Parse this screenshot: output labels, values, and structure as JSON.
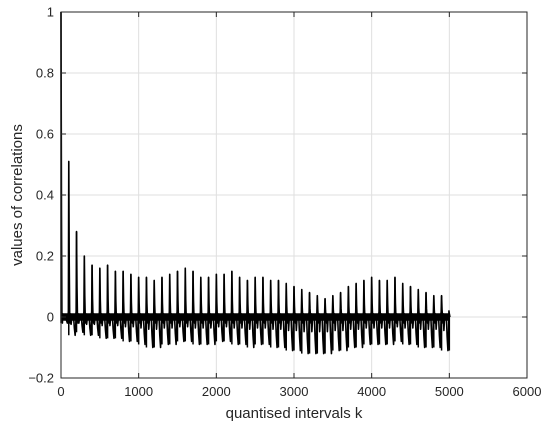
{
  "chart_data": {
    "type": "line",
    "title": "",
    "xlabel": "quantised intervals k",
    "ylabel": "values of correlations",
    "xlim": [
      0,
      6000
    ],
    "ylim": [
      -0.2,
      1
    ],
    "xticks": [
      0,
      1000,
      2000,
      3000,
      4000,
      5000,
      6000
    ],
    "xtick_labels": [
      "0",
      "1000",
      "2000",
      "3000",
      "4000",
      "5000",
      "6000"
    ],
    "yticks": [
      -0.2,
      0,
      0.2,
      0.4,
      0.6,
      0.8,
      1
    ],
    "ytick_labels": [
      "−0.2",
      "0",
      "0.2",
      "0.4",
      "0.6",
      "0.8",
      "1"
    ],
    "grid": true,
    "legend": "none",
    "line_color": "#000000",
    "series": [
      {
        "peak_k": [
          0,
          100,
          200,
          300,
          400,
          500,
          600,
          700,
          800,
          900,
          1000,
          1100,
          1200,
          1300,
          1400,
          1500,
          1600,
          1700,
          1800,
          1900,
          2000,
          2100,
          2200,
          2300,
          2400,
          2500,
          2600,
          2700,
          2800,
          2900,
          3000,
          3100,
          3200,
          3300,
          3400,
          3500,
          3600,
          3700,
          3800,
          3900,
          4000,
          4100,
          4200,
          4300,
          4400,
          4500,
          4600,
          4700,
          4800,
          4900,
          5000
        ],
        "peak_values": [
          1.0,
          0.51,
          0.28,
          0.2,
          0.17,
          0.16,
          0.17,
          0.15,
          0.15,
          0.14,
          0.13,
          0.13,
          0.12,
          0.13,
          0.14,
          0.15,
          0.16,
          0.15,
          0.13,
          0.13,
          0.14,
          0.14,
          0.15,
          0.13,
          0.12,
          0.13,
          0.13,
          0.12,
          0.12,
          0.11,
          0.1,
          0.09,
          0.08,
          0.07,
          0.06,
          0.07,
          0.08,
          0.1,
          0.11,
          0.12,
          0.13,
          0.12,
          0.12,
          0.13,
          0.11,
          0.1,
          0.09,
          0.08,
          0.07,
          0.07,
          0.01
        ],
        "trough_values": [
          -0.02,
          -0.06,
          -0.05,
          -0.06,
          -0.06,
          -0.07,
          -0.07,
          -0.07,
          -0.08,
          -0.08,
          -0.09,
          -0.1,
          -0.1,
          -0.09,
          -0.09,
          -0.08,
          -0.08,
          -0.09,
          -0.09,
          -0.09,
          -0.08,
          -0.08,
          -0.09,
          -0.09,
          -0.1,
          -0.09,
          -0.09,
          -0.1,
          -0.1,
          -0.11,
          -0.11,
          -0.12,
          -0.12,
          -0.12,
          -0.12,
          -0.11,
          -0.11,
          -0.1,
          -0.1,
          -0.09,
          -0.09,
          -0.09,
          -0.09,
          -0.08,
          -0.09,
          -0.09,
          -0.1,
          -0.1,
          -0.1,
          -0.11,
          -0.11
        ]
      }
    ]
  },
  "colors": {
    "axes": "#262626",
    "grid": "#dfdfdf",
    "background": "#ffffff"
  }
}
